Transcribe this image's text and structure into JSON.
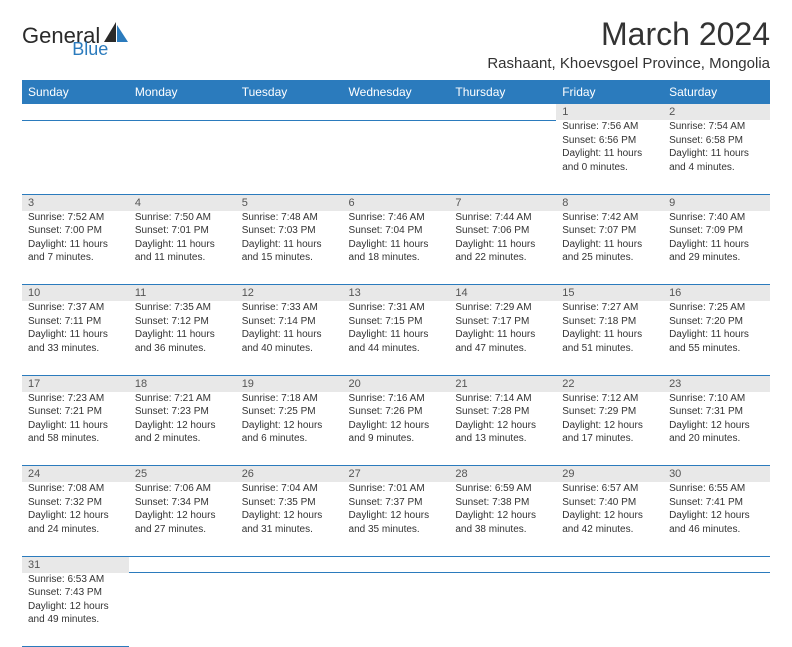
{
  "brand": {
    "name_part1": "General",
    "name_part2": "Blue"
  },
  "title": "March 2024",
  "subtitle": "Rashaant, Khoevsgoel Province, Mongolia",
  "colors": {
    "header_bg": "#2b7bbd",
    "header_fg": "#ffffff",
    "daynum_bg": "#e8e8e8",
    "text": "#333333"
  },
  "day_headers": [
    "Sunday",
    "Monday",
    "Tuesday",
    "Wednesday",
    "Thursday",
    "Friday",
    "Saturday"
  ],
  "weeks": [
    [
      null,
      null,
      null,
      null,
      null,
      {
        "n": "1",
        "sr": "Sunrise: 7:56 AM",
        "ss": "Sunset: 6:56 PM",
        "dl": "Daylight: 11 hours and 0 minutes."
      },
      {
        "n": "2",
        "sr": "Sunrise: 7:54 AM",
        "ss": "Sunset: 6:58 PM",
        "dl": "Daylight: 11 hours and 4 minutes."
      }
    ],
    [
      {
        "n": "3",
        "sr": "Sunrise: 7:52 AM",
        "ss": "Sunset: 7:00 PM",
        "dl": "Daylight: 11 hours and 7 minutes."
      },
      {
        "n": "4",
        "sr": "Sunrise: 7:50 AM",
        "ss": "Sunset: 7:01 PM",
        "dl": "Daylight: 11 hours and 11 minutes."
      },
      {
        "n": "5",
        "sr": "Sunrise: 7:48 AM",
        "ss": "Sunset: 7:03 PM",
        "dl": "Daylight: 11 hours and 15 minutes."
      },
      {
        "n": "6",
        "sr": "Sunrise: 7:46 AM",
        "ss": "Sunset: 7:04 PM",
        "dl": "Daylight: 11 hours and 18 minutes."
      },
      {
        "n": "7",
        "sr": "Sunrise: 7:44 AM",
        "ss": "Sunset: 7:06 PM",
        "dl": "Daylight: 11 hours and 22 minutes."
      },
      {
        "n": "8",
        "sr": "Sunrise: 7:42 AM",
        "ss": "Sunset: 7:07 PM",
        "dl": "Daylight: 11 hours and 25 minutes."
      },
      {
        "n": "9",
        "sr": "Sunrise: 7:40 AM",
        "ss": "Sunset: 7:09 PM",
        "dl": "Daylight: 11 hours and 29 minutes."
      }
    ],
    [
      {
        "n": "10",
        "sr": "Sunrise: 7:37 AM",
        "ss": "Sunset: 7:11 PM",
        "dl": "Daylight: 11 hours and 33 minutes."
      },
      {
        "n": "11",
        "sr": "Sunrise: 7:35 AM",
        "ss": "Sunset: 7:12 PM",
        "dl": "Daylight: 11 hours and 36 minutes."
      },
      {
        "n": "12",
        "sr": "Sunrise: 7:33 AM",
        "ss": "Sunset: 7:14 PM",
        "dl": "Daylight: 11 hours and 40 minutes."
      },
      {
        "n": "13",
        "sr": "Sunrise: 7:31 AM",
        "ss": "Sunset: 7:15 PM",
        "dl": "Daylight: 11 hours and 44 minutes."
      },
      {
        "n": "14",
        "sr": "Sunrise: 7:29 AM",
        "ss": "Sunset: 7:17 PM",
        "dl": "Daylight: 11 hours and 47 minutes."
      },
      {
        "n": "15",
        "sr": "Sunrise: 7:27 AM",
        "ss": "Sunset: 7:18 PM",
        "dl": "Daylight: 11 hours and 51 minutes."
      },
      {
        "n": "16",
        "sr": "Sunrise: 7:25 AM",
        "ss": "Sunset: 7:20 PM",
        "dl": "Daylight: 11 hours and 55 minutes."
      }
    ],
    [
      {
        "n": "17",
        "sr": "Sunrise: 7:23 AM",
        "ss": "Sunset: 7:21 PM",
        "dl": "Daylight: 11 hours and 58 minutes."
      },
      {
        "n": "18",
        "sr": "Sunrise: 7:21 AM",
        "ss": "Sunset: 7:23 PM",
        "dl": "Daylight: 12 hours and 2 minutes."
      },
      {
        "n": "19",
        "sr": "Sunrise: 7:18 AM",
        "ss": "Sunset: 7:25 PM",
        "dl": "Daylight: 12 hours and 6 minutes."
      },
      {
        "n": "20",
        "sr": "Sunrise: 7:16 AM",
        "ss": "Sunset: 7:26 PM",
        "dl": "Daylight: 12 hours and 9 minutes."
      },
      {
        "n": "21",
        "sr": "Sunrise: 7:14 AM",
        "ss": "Sunset: 7:28 PM",
        "dl": "Daylight: 12 hours and 13 minutes."
      },
      {
        "n": "22",
        "sr": "Sunrise: 7:12 AM",
        "ss": "Sunset: 7:29 PM",
        "dl": "Daylight: 12 hours and 17 minutes."
      },
      {
        "n": "23",
        "sr": "Sunrise: 7:10 AM",
        "ss": "Sunset: 7:31 PM",
        "dl": "Daylight: 12 hours and 20 minutes."
      }
    ],
    [
      {
        "n": "24",
        "sr": "Sunrise: 7:08 AM",
        "ss": "Sunset: 7:32 PM",
        "dl": "Daylight: 12 hours and 24 minutes."
      },
      {
        "n": "25",
        "sr": "Sunrise: 7:06 AM",
        "ss": "Sunset: 7:34 PM",
        "dl": "Daylight: 12 hours and 27 minutes."
      },
      {
        "n": "26",
        "sr": "Sunrise: 7:04 AM",
        "ss": "Sunset: 7:35 PM",
        "dl": "Daylight: 12 hours and 31 minutes."
      },
      {
        "n": "27",
        "sr": "Sunrise: 7:01 AM",
        "ss": "Sunset: 7:37 PM",
        "dl": "Daylight: 12 hours and 35 minutes."
      },
      {
        "n": "28",
        "sr": "Sunrise: 6:59 AM",
        "ss": "Sunset: 7:38 PM",
        "dl": "Daylight: 12 hours and 38 minutes."
      },
      {
        "n": "29",
        "sr": "Sunrise: 6:57 AM",
        "ss": "Sunset: 7:40 PM",
        "dl": "Daylight: 12 hours and 42 minutes."
      },
      {
        "n": "30",
        "sr": "Sunrise: 6:55 AM",
        "ss": "Sunset: 7:41 PM",
        "dl": "Daylight: 12 hours and 46 minutes."
      }
    ],
    [
      {
        "n": "31",
        "sr": "Sunrise: 6:53 AM",
        "ss": "Sunset: 7:43 PM",
        "dl": "Daylight: 12 hours and 49 minutes."
      },
      null,
      null,
      null,
      null,
      null,
      null
    ]
  ]
}
